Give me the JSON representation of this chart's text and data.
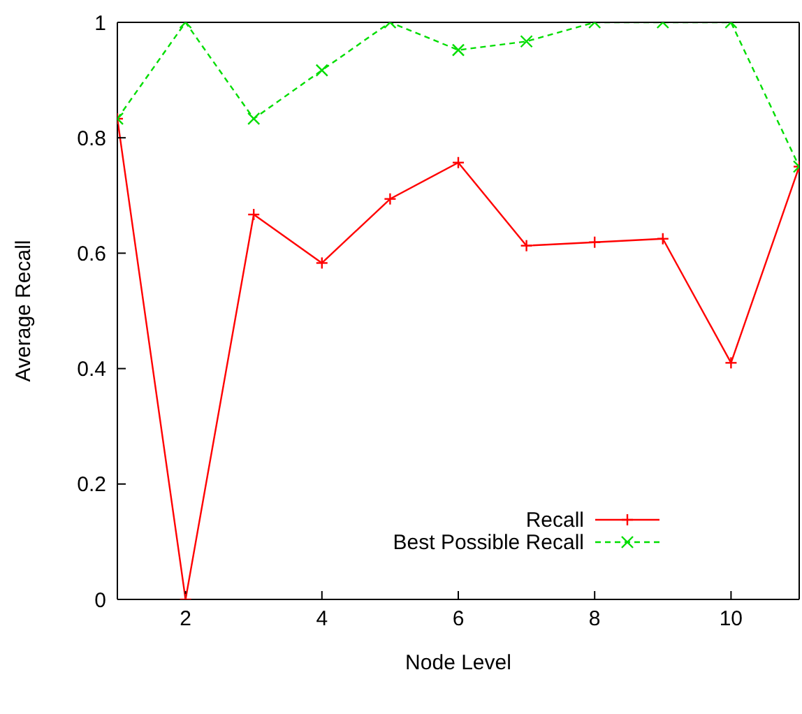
{
  "chart_data": {
    "type": "line",
    "xlabel": "Node Level",
    "ylabel": "Average Recall",
    "x": [
      1,
      2,
      3,
      4,
      5,
      6,
      7,
      8,
      9,
      10,
      11
    ],
    "series": [
      {
        "name": "Recall",
        "color": "#ff0000",
        "marker": "plus",
        "line_style": "solid",
        "values": [
          0.833,
          0,
          0.667,
          0.583,
          0.694,
          0.757,
          0.613,
          0.619,
          0.625,
          0.41,
          0.75
        ]
      },
      {
        "name": "Best Possible Recall",
        "color": "#00dd00",
        "marker": "cross",
        "line_style": "dashed",
        "values": [
          0.833,
          1,
          0.833,
          0.917,
          1,
          0.952,
          0.967,
          1,
          1,
          1,
          0.75
        ]
      }
    ],
    "xlim": [
      1,
      11
    ],
    "xticks": [
      2,
      4,
      6,
      8,
      10
    ],
    "ylim": [
      0,
      1
    ],
    "yticks": [
      0,
      0.2,
      0.4,
      0.6,
      0.8,
      1
    ],
    "grid": false,
    "legend": "bottom right"
  }
}
